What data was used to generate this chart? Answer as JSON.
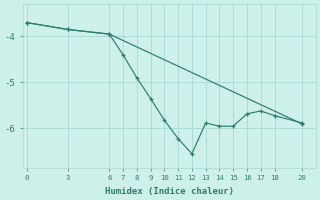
{
  "line1_x": [
    0,
    3,
    6,
    20
  ],
  "line1_y": [
    -3.7,
    -3.85,
    -3.95,
    -5.9
  ],
  "line2_x": [
    0,
    3,
    6,
    7,
    8,
    9,
    10,
    11,
    12,
    13,
    14,
    15,
    16,
    17,
    18,
    20
  ],
  "line2_y": [
    -3.7,
    -3.85,
    -3.95,
    -4.4,
    -4.9,
    -5.35,
    -5.82,
    -6.22,
    -6.55,
    -5.88,
    -5.95,
    -5.95,
    -5.68,
    -5.62,
    -5.72,
    -5.88
  ],
  "line_color": "#2d7d6d",
  "bg_color": "#cef0ea",
  "grid_color": "#aad8d2",
  "xlabel": "Humidex (Indice chaleur)",
  "xticks": [
    0,
    3,
    6,
    7,
    8,
    9,
    10,
    11,
    12,
    13,
    14,
    15,
    16,
    17,
    18,
    20
  ],
  "yticks": [
    -6,
    -5,
    -4
  ],
  "ylim": [
    -6.85,
    -3.3
  ],
  "xlim": [
    -0.3,
    21.0
  ]
}
